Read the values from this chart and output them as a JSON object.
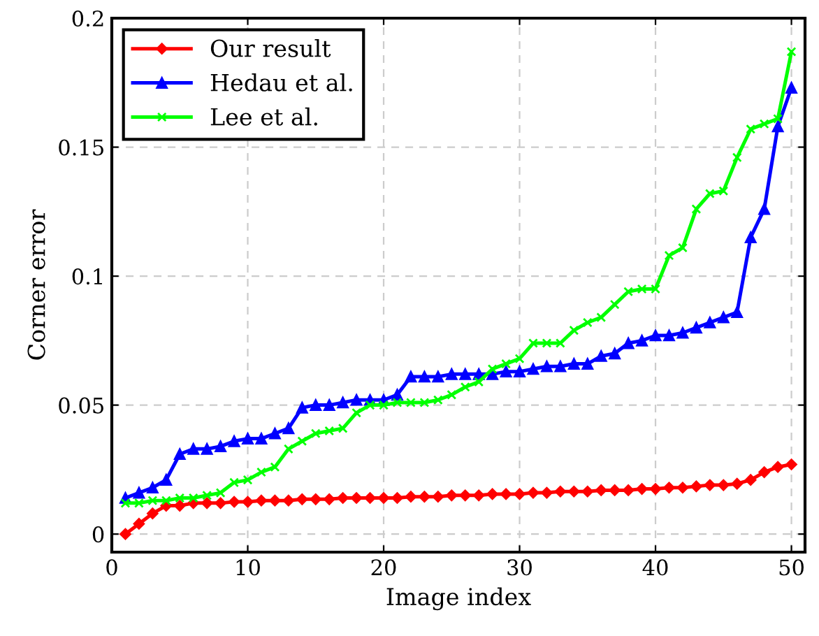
{
  "chart_data": {
    "type": "line",
    "xlabel": "Image index",
    "ylabel": "Corner error",
    "x": [
      1,
      2,
      3,
      4,
      5,
      6,
      7,
      8,
      9,
      10,
      11,
      12,
      13,
      14,
      15,
      16,
      17,
      18,
      19,
      20,
      21,
      22,
      23,
      24,
      25,
      26,
      27,
      28,
      29,
      30,
      31,
      32,
      33,
      34,
      35,
      36,
      37,
      38,
      39,
      40,
      41,
      42,
      43,
      44,
      45,
      46,
      47,
      48,
      49,
      50
    ],
    "series": [
      {
        "name": "Our result",
        "color": "#ff0000",
        "marker": "diamond",
        "values": [
          0,
          0.004,
          0.008,
          0.011,
          0.011,
          0.012,
          0.012,
          0.012,
          0.0125,
          0.0125,
          0.013,
          0.013,
          0.013,
          0.0135,
          0.0135,
          0.0135,
          0.014,
          0.014,
          0.014,
          0.014,
          0.014,
          0.0145,
          0.0145,
          0.0145,
          0.015,
          0.015,
          0.015,
          0.0155,
          0.0155,
          0.0155,
          0.016,
          0.016,
          0.0165,
          0.0165,
          0.0165,
          0.017,
          0.017,
          0.017,
          0.0175,
          0.0175,
          0.018,
          0.018,
          0.0185,
          0.019,
          0.019,
          0.0195,
          0.021,
          0.024,
          0.026,
          0.027
        ]
      },
      {
        "name": "Hedau et al.",
        "color": "#0000ff",
        "marker": "triangle",
        "values": [
          0.014,
          0.016,
          0.018,
          0.021,
          0.031,
          0.033,
          0.033,
          0.034,
          0.036,
          0.037,
          0.037,
          0.039,
          0.041,
          0.049,
          0.05,
          0.05,
          0.051,
          0.052,
          0.052,
          0.052,
          0.054,
          0.061,
          0.061,
          0.061,
          0.062,
          0.062,
          0.062,
          0.062,
          0.063,
          0.063,
          0.064,
          0.065,
          0.065,
          0.066,
          0.066,
          0.069,
          0.07,
          0.074,
          0.075,
          0.077,
          0.077,
          0.078,
          0.08,
          0.082,
          0.084,
          0.086,
          0.115,
          0.126,
          0.158,
          0.173
        ]
      },
      {
        "name": "Lee et al.",
        "color": "#00ff00",
        "marker": "cross",
        "values": [
          0.012,
          0.012,
          0.013,
          0.013,
          0.014,
          0.014,
          0.015,
          0.016,
          0.02,
          0.021,
          0.024,
          0.026,
          0.033,
          0.036,
          0.039,
          0.04,
          0.041,
          0.047,
          0.05,
          0.05,
          0.051,
          0.051,
          0.051,
          0.052,
          0.054,
          0.057,
          0.059,
          0.064,
          0.066,
          0.068,
          0.074,
          0.074,
          0.074,
          0.079,
          0.082,
          0.084,
          0.089,
          0.094,
          0.095,
          0.095,
          0.108,
          0.111,
          0.126,
          0.132,
          0.133,
          0.146,
          0.157,
          0.159,
          0.161,
          0.187
        ]
      }
    ],
    "xlim": [
      0,
      51
    ],
    "ylim": [
      -0.007,
      0.2
    ],
    "xticks": [
      0,
      10,
      20,
      30,
      40,
      50
    ],
    "yticks": [
      0,
      0.05,
      0.1,
      0.15,
      0.2
    ],
    "grid": true,
    "legend": "top left",
    "line_style": "solid"
  }
}
